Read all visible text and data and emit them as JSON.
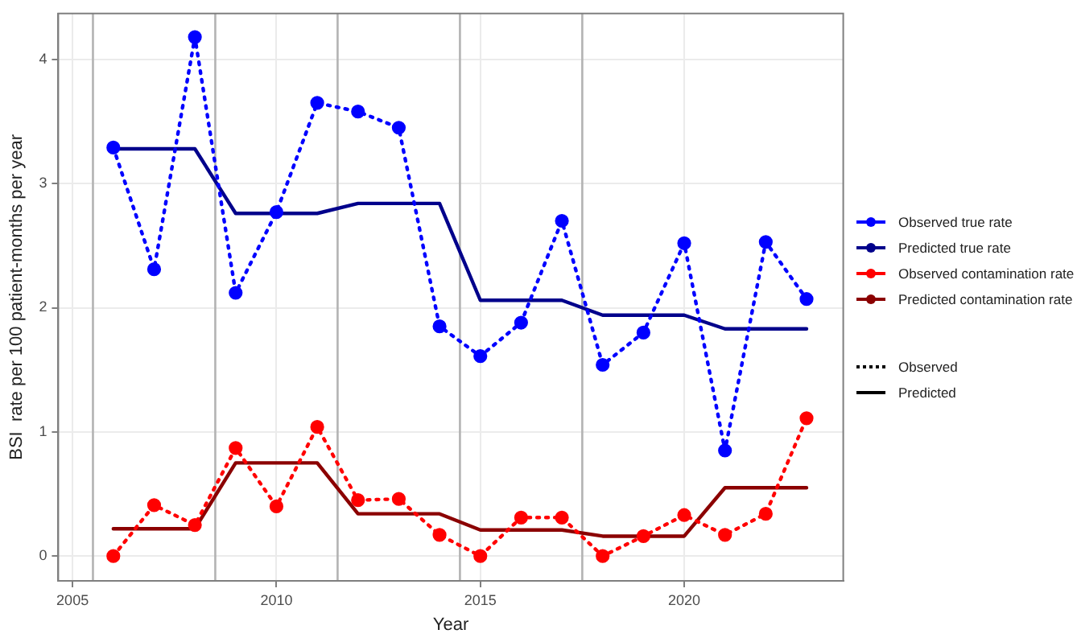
{
  "chart_data": {
    "type": "line",
    "xlabel": "Year",
    "ylabel": "BSI  rate per 100 patient-months per year",
    "x": [
      2006,
      2007,
      2008,
      2009,
      2010,
      2011,
      2012,
      2013,
      2014,
      2015,
      2016,
      2017,
      2018,
      2019,
      2020,
      2021,
      2022,
      2023
    ],
    "xlim": [
      2004.65,
      2023.9
    ],
    "xticks": [
      2005,
      2010,
      2015,
      2020
    ],
    "ylim": [
      -0.2,
      4.37
    ],
    "yticks": [
      0,
      1,
      2,
      3,
      4
    ],
    "grid": true,
    "legend": "right",
    "series": [
      {
        "name": "Observed true rate",
        "color": "#0000ff",
        "marker": "circle",
        "line_style": "dotted",
        "values": [
          3.29,
          2.31,
          4.18,
          2.12,
          2.77,
          3.65,
          3.58,
          3.45,
          1.85,
          1.61,
          1.88,
          2.7,
          1.54,
          1.8,
          2.52,
          0.85,
          2.53,
          2.07
        ]
      },
      {
        "name": "Predicted true rate",
        "color": "#00008b",
        "marker": "none",
        "line_style": "solid",
        "values": [
          3.28,
          3.28,
          3.28,
          2.76,
          2.76,
          2.76,
          2.84,
          2.84,
          2.84,
          2.06,
          2.06,
          2.06,
          1.94,
          1.94,
          1.94,
          1.83,
          1.83,
          1.83
        ]
      },
      {
        "name": "Observed contamination rate",
        "color": "#ff0000",
        "marker": "circle",
        "line_style": "dotted",
        "values": [
          0,
          0.41,
          0.25,
          0.87,
          0.4,
          1.04,
          0.45,
          0.46,
          0.17,
          0,
          0.31,
          0.31,
          0,
          0.16,
          0.33,
          0.17,
          0.34,
          1.11
        ]
      },
      {
        "name": "Predicted contamination rate",
        "color": "#8b0000",
        "marker": "none",
        "line_style": "solid",
        "values": [
          0.22,
          0.22,
          0.22,
          0.75,
          0.75,
          0.75,
          0.34,
          0.34,
          0.34,
          0.21,
          0.21,
          0.21,
          0.16,
          0.16,
          0.16,
          0.55,
          0.55,
          0.55
        ]
      }
    ],
    "ref_lines": [
      {
        "axis": "x",
        "value": 2005.5,
        "color": "#b3b3b3"
      },
      {
        "axis": "x",
        "value": 2008.5,
        "color": "#b3b3b3"
      },
      {
        "axis": "x",
        "value": 2011.5,
        "color": "#b3b3b3"
      },
      {
        "axis": "x",
        "value": 2014.5,
        "color": "#b3b3b3"
      },
      {
        "axis": "x",
        "value": 2017.5,
        "color": "#b3b3b3"
      }
    ],
    "annotations": [
      "Observed",
      "Predicted"
    ]
  }
}
